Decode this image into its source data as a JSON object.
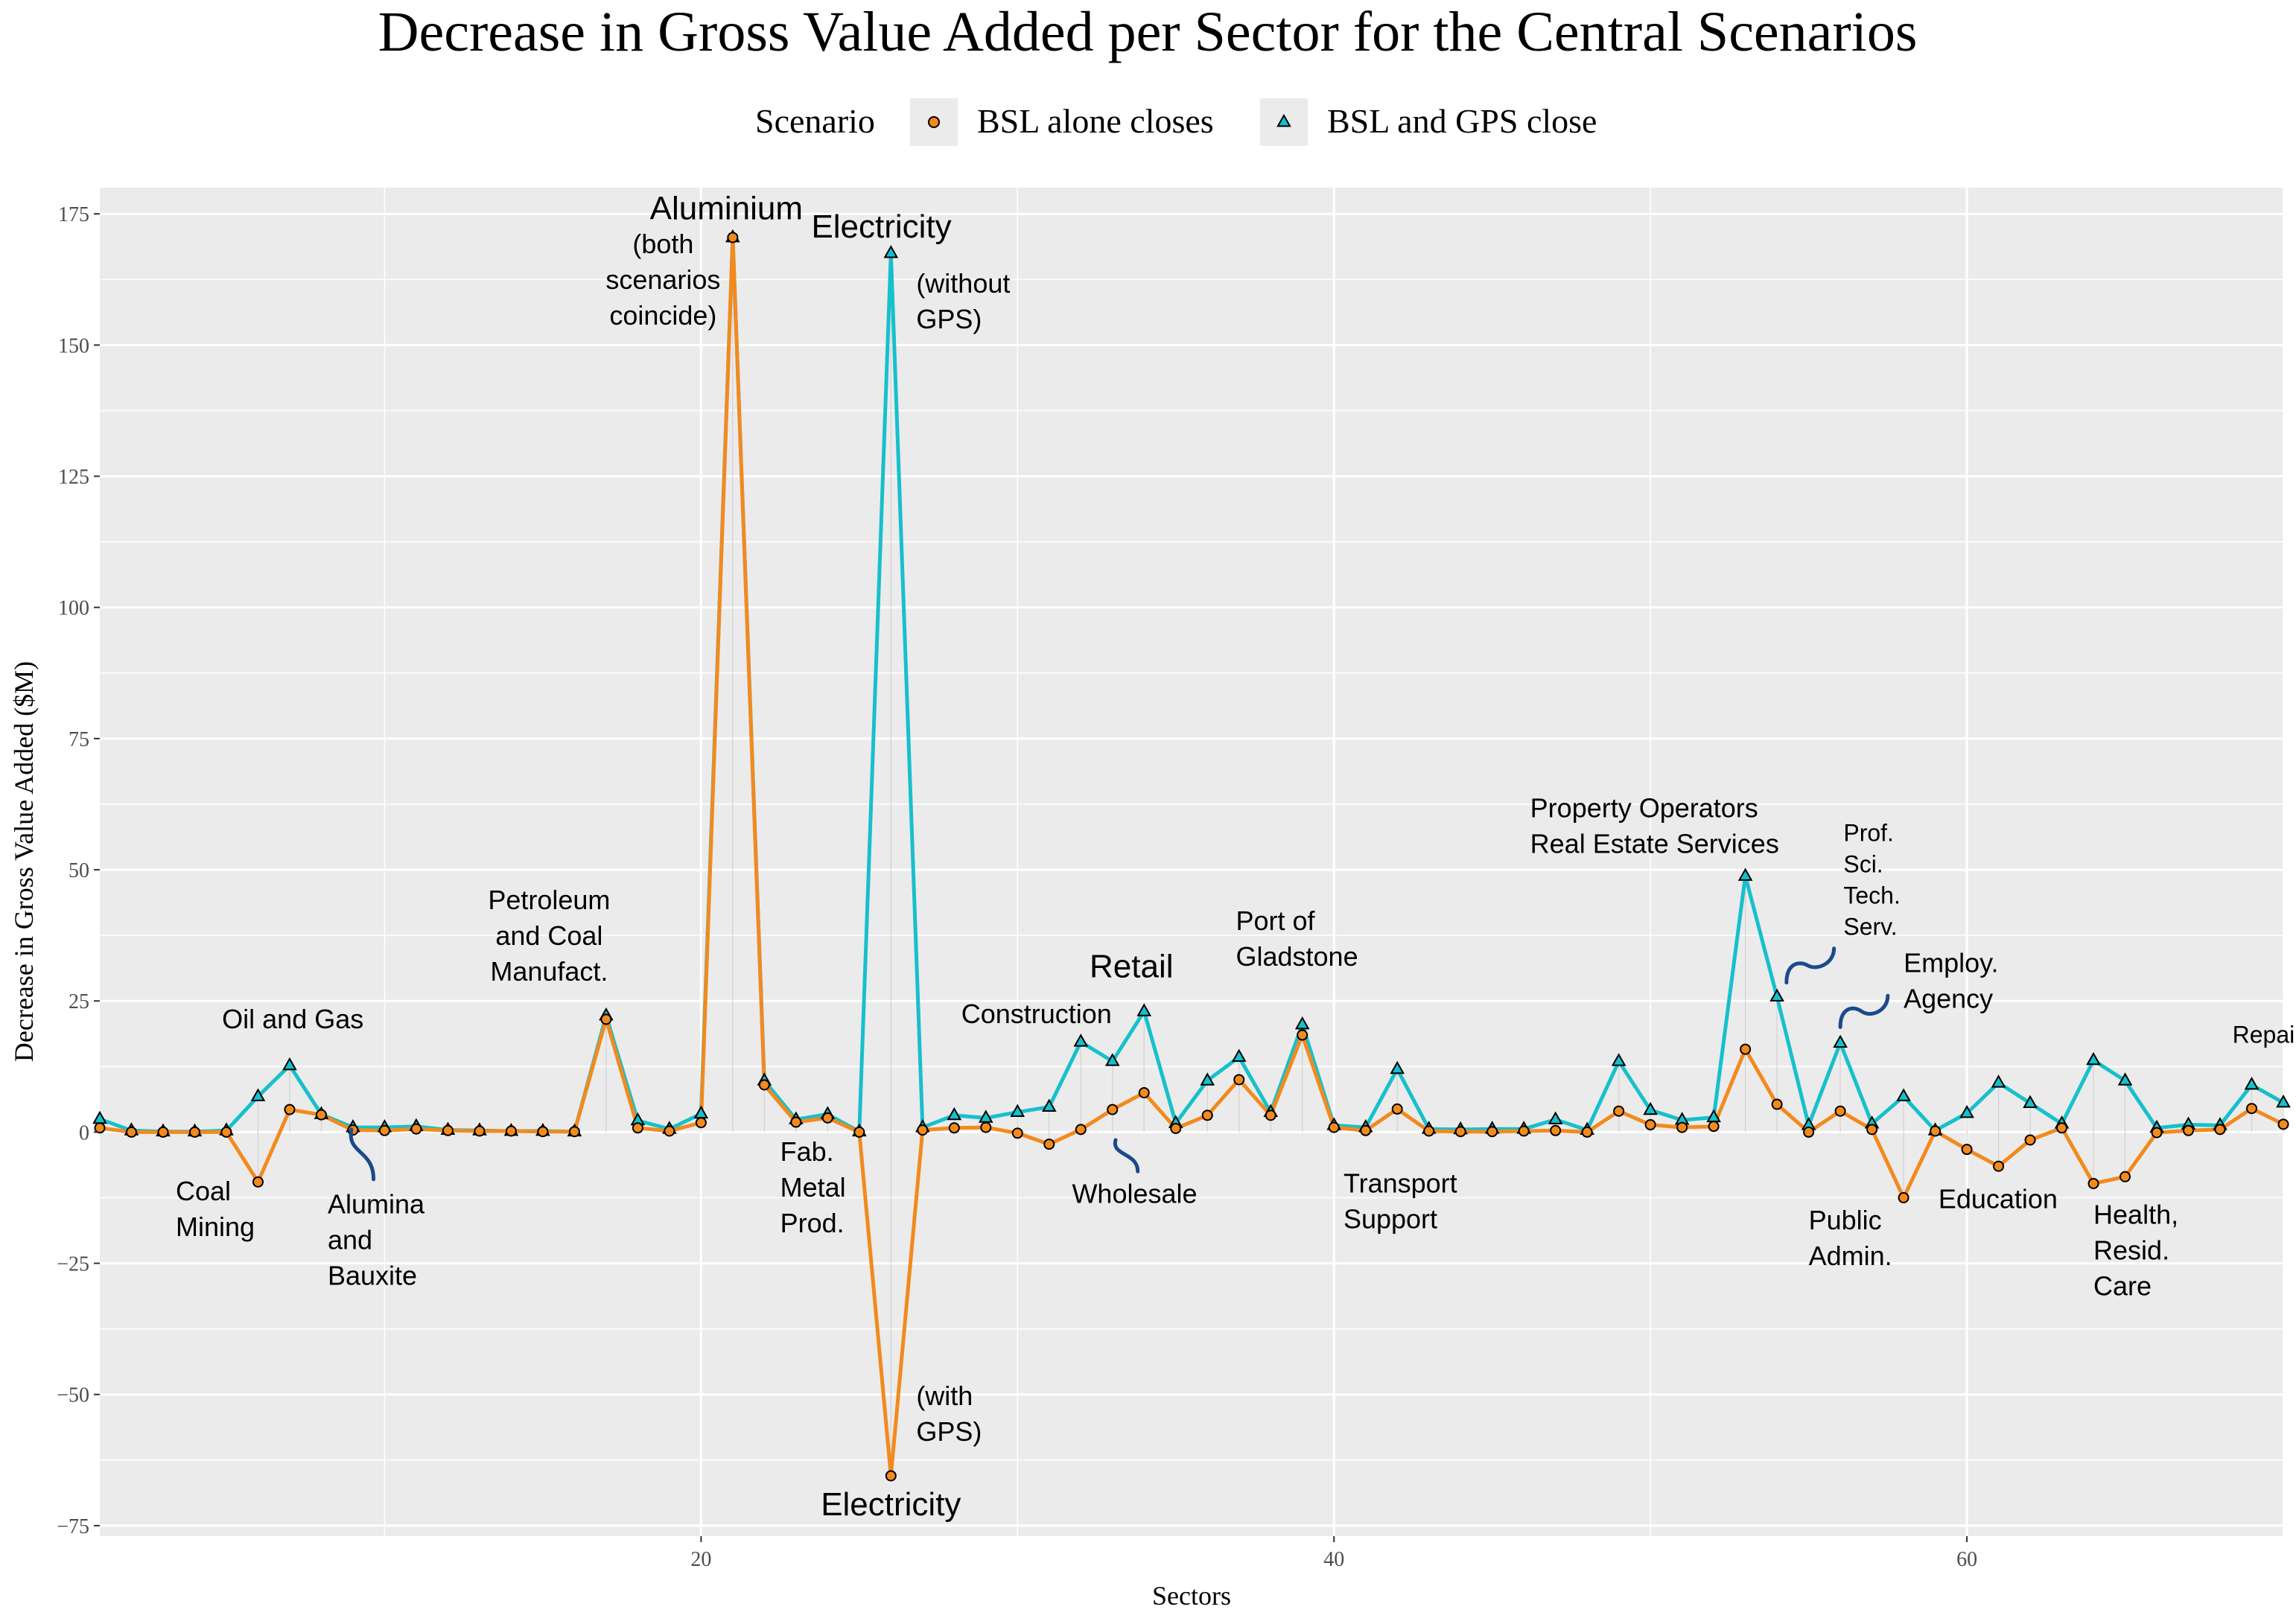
{
  "chart_data": {
    "type": "line",
    "title": "Decrease in Gross Value Added per Sector for the Central Scenarios",
    "xlabel": "Sectors",
    "ylabel": "Decrease in Gross Value Added ($M)",
    "xlim": [
      1,
      70
    ],
    "ylim": [
      -77,
      180
    ],
    "x_ticks": [
      20,
      40,
      60
    ],
    "y_ticks": [
      -75,
      -50,
      -25,
      0,
      25,
      50,
      75,
      100,
      125,
      150,
      175
    ],
    "grid": true,
    "legend": {
      "title": "Scenario",
      "position": "top"
    },
    "x": [
      1,
      2,
      3,
      4,
      5,
      6,
      7,
      8,
      9,
      10,
      11,
      12,
      13,
      14,
      15,
      16,
      17,
      18,
      19,
      20,
      21,
      22,
      23,
      24,
      25,
      26,
      27,
      28,
      29,
      30,
      31,
      32,
      33,
      34,
      35,
      36,
      37,
      38,
      39,
      40,
      41,
      42,
      43,
      44,
      45,
      46,
      47,
      48,
      49,
      50,
      51,
      52,
      53,
      54,
      55,
      56,
      57,
      58,
      59,
      60,
      61,
      62,
      63,
      64,
      65,
      66,
      67,
      68,
      69,
      70
    ],
    "series": [
      {
        "name": "BSL alone closes",
        "color": "#f28a1e",
        "marker": "circle",
        "values": [
          0.8,
          0,
          0,
          0,
          0,
          -9.5,
          4.3,
          3.3,
          0.4,
          0.3,
          0.6,
          0.3,
          0.2,
          0.2,
          0.1,
          0.1,
          21.5,
          0.8,
          0.2,
          1.8,
          170.5,
          9.0,
          1.9,
          2.7,
          0,
          -65.5,
          0.4,
          0.8,
          0.9,
          -0.2,
          -2.3,
          0.5,
          4.3,
          7.5,
          0.7,
          3.2,
          10.0,
          3.2,
          18.5,
          0.9,
          0.3,
          4.4,
          0.2,
          0.1,
          0.1,
          0.2,
          0.3,
          0,
          4.0,
          1.4,
          0.9,
          1.1,
          15.8,
          5.3,
          0,
          4.0,
          0.5,
          -12.5,
          0.2,
          -3.3,
          -6.5,
          -1.5,
          0.8,
          -9.8,
          -8.5,
          -0.1,
          0.3,
          0.5,
          4.5,
          1.5
        ]
      },
      {
        "name": "BSL and GPS close",
        "color": "#16c0cc",
        "marker": "triangle",
        "values": [
          2.5,
          0.3,
          0.1,
          0.1,
          0.3,
          6.8,
          12.7,
          3.4,
          0.9,
          0.9,
          1.1,
          0.4,
          0.3,
          0.2,
          0.2,
          0.1,
          22.2,
          2.2,
          0.6,
          3.5,
          170.5,
          9.8,
          2.4,
          3.4,
          0.1,
          167.5,
          0.9,
          3.2,
          2.7,
          3.8,
          4.8,
          17.2,
          13.5,
          23.0,
          1.7,
          9.8,
          14.3,
          3.8,
          20.5,
          1.3,
          0.9,
          12.0,
          0.6,
          0.5,
          0.6,
          0.6,
          2.4,
          0.4,
          13.5,
          4.2,
          2.3,
          2.8,
          48.8,
          25.8,
          1.3,
          17.0,
          1.6,
          6.8,
          0.3,
          3.6,
          9.4,
          5.5,
          1.6,
          13.7,
          9.8,
          0.8,
          1.4,
          1.3,
          9.0,
          5.6
        ]
      }
    ],
    "annotations": [
      {
        "lines": [
          "Aluminium"
        ],
        "x": 20.8,
        "y": 174,
        "anchor": "middle",
        "size": "big"
      },
      {
        "lines": [
          "(both",
          "scenarios",
          "coincide)"
        ],
        "x": 18.8,
        "y": 167.5,
        "anchor": "middle",
        "size": "normal"
      },
      {
        "lines": [
          "Electricity"
        ],
        "x": 25.7,
        "y": 170.5,
        "anchor": "middle",
        "size": "big"
      },
      {
        "lines": [
          "(without",
          "GPS)"
        ],
        "x": 26.8,
        "y": 160,
        "anchor": "start",
        "size": "normal"
      },
      {
        "lines": [
          "(with",
          "GPS)"
        ],
        "x": 26.8,
        "y": -52,
        "anchor": "start",
        "size": "normal"
      },
      {
        "lines": [
          "Electricity"
        ],
        "x": 26.0,
        "y": -73,
        "anchor": "middle",
        "size": "big"
      },
      {
        "lines": [
          "Oil and Gas"
        ],
        "x": 7.1,
        "y": 19.8,
        "anchor": "middle",
        "size": "normal"
      },
      {
        "lines": [
          "Coal",
          "Mining"
        ],
        "x": 3.4,
        "y": -13,
        "anchor": "start",
        "size": "normal"
      },
      {
        "lines": [
          "Alumina",
          "and",
          "Bauxite"
        ],
        "x": 8.2,
        "y": -15.5,
        "anchor": "start",
        "size": "normal"
      },
      {
        "lines": [
          "Petroleum",
          "and Coal",
          "Manufact."
        ],
        "x": 15.2,
        "y": 42.5,
        "anchor": "middle",
        "size": "normal"
      },
      {
        "lines": [
          "Fab.",
          "Metal",
          "Prod."
        ],
        "x": 22.5,
        "y": -5.5,
        "anchor": "start",
        "size": "normal"
      },
      {
        "lines": [
          "Construction"
        ],
        "x": 30.6,
        "y": 20.8,
        "anchor": "middle",
        "size": "normal"
      },
      {
        "lines": [
          "Retail"
        ],
        "x": 33.6,
        "y": 29.5,
        "anchor": "middle",
        "size": "big"
      },
      {
        "lines": [
          "Wholesale"
        ],
        "x": 33.7,
        "y": -13.5,
        "anchor": "middle",
        "size": "normal"
      },
      {
        "lines": [
          "Port of",
          "Gladstone"
        ],
        "x": 36.9,
        "y": 38.5,
        "anchor": "start",
        "size": "normal"
      },
      {
        "lines": [
          "Transport",
          "Support"
        ],
        "x": 40.3,
        "y": -11.5,
        "anchor": "start",
        "size": "normal"
      },
      {
        "lines": [
          "Property Operators",
          "Real Estate Services"
        ],
        "x": 46.2,
        "y": 60,
        "anchor": "start",
        "size": "normal"
      },
      {
        "lines": [
          "Prof.",
          "Sci.",
          "Tech.",
          "Serv."
        ],
        "x": 56.1,
        "y": 55.5,
        "anchor": "start",
        "size": "small"
      },
      {
        "lines": [
          "Employ.",
          "Agency"
        ],
        "x": 58.0,
        "y": 30.5,
        "anchor": "start",
        "size": "normal"
      },
      {
        "lines": [
          "Public",
          "Admin."
        ],
        "x": 55.0,
        "y": -18.5,
        "anchor": "start",
        "size": "normal"
      },
      {
        "lines": [
          "Education"
        ],
        "x": 59.1,
        "y": -14.5,
        "anchor": "start",
        "size": "normal"
      },
      {
        "lines": [
          "Health,",
          "Resid.",
          "Care"
        ],
        "x": 64.0,
        "y": -17.5,
        "anchor": "start",
        "size": "normal"
      },
      {
        "lines": [
          "Repair"
        ],
        "x": 69.5,
        "y": 17,
        "anchor": "middle",
        "size": "small"
      }
    ],
    "curly_connectors": [
      {
        "from": [
          8.95,
          0.5
        ],
        "to": [
          9.65,
          -9
        ],
        "shape": "s"
      },
      {
        "from": [
          33.1,
          -1.5
        ],
        "to": [
          33.8,
          -7.5
        ],
        "shape": "s"
      },
      {
        "from": [
          54.3,
          28.5
        ],
        "to": [
          55.8,
          35
        ],
        "shape": "wave"
      },
      {
        "from": [
          56.0,
          20
        ],
        "to": [
          57.5,
          26
        ],
        "shape": "wave"
      }
    ]
  }
}
